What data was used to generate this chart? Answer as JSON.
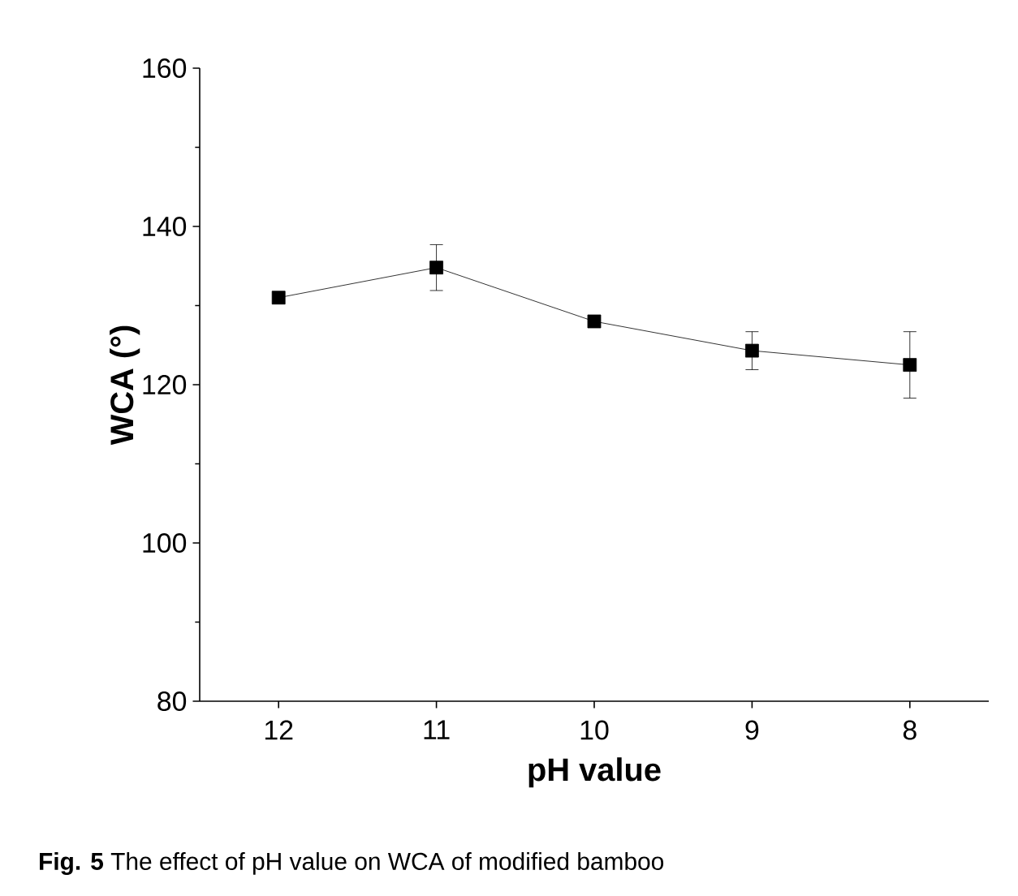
{
  "chart_data": {
    "type": "line",
    "xlabel": "pH value",
    "ylabel": "WCA (°)",
    "x": [
      12,
      11,
      10,
      9,
      8
    ],
    "values": [
      131,
      134.8,
      128,
      124.3,
      122.5
    ],
    "errors": [
      null,
      2.9,
      null,
      2.4,
      4.2
    ],
    "color": "#000000",
    "marker": "square",
    "line_style": "solid",
    "xlim": [
      12.5,
      7.5
    ],
    "xticks": [
      12,
      11,
      10,
      9,
      8
    ],
    "ylim": [
      80,
      160
    ],
    "yticks": [
      80,
      100,
      120,
      140,
      160
    ],
    "grid": false,
    "annotations": [
      "**Fig. 5** The effect of pH value on WCA of modified bamboo"
    ]
  }
}
